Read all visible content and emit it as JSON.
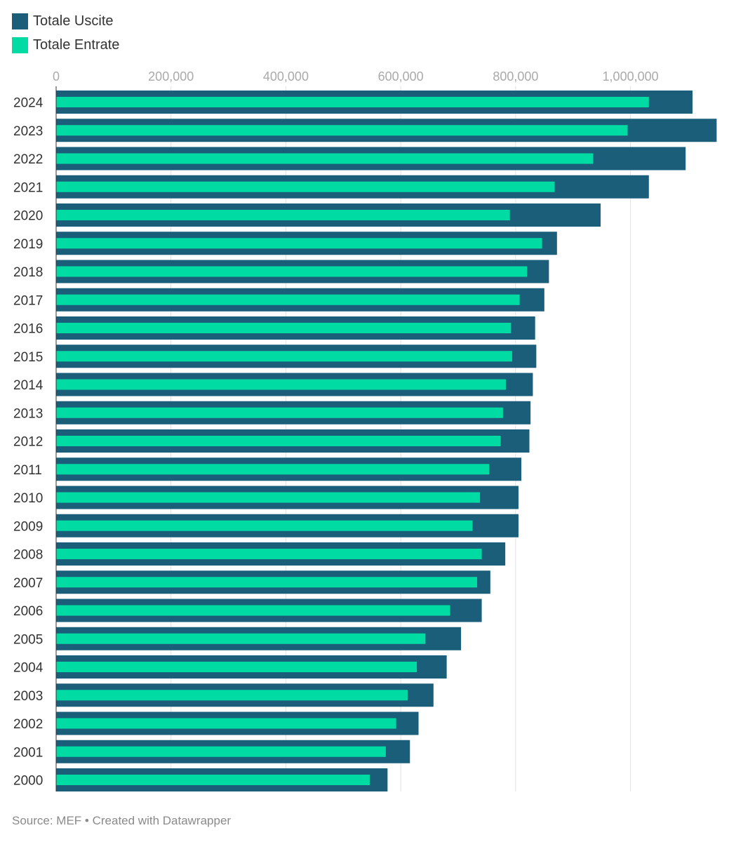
{
  "legend": {
    "uscite_label": "Totale Uscite",
    "entrate_label": "Totale Entrate"
  },
  "colors": {
    "uscite": "#1b5e7a",
    "entrate": "#00dba4"
  },
  "footer": {
    "text": "Source: MEF • Created with Datawrapper"
  },
  "chart_data": {
    "type": "bar",
    "orientation": "horizontal",
    "categories": [
      "2024",
      "2023",
      "2022",
      "2021",
      "2020",
      "2019",
      "2018",
      "2017",
      "2016",
      "2015",
      "2014",
      "2013",
      "2012",
      "2011",
      "2010",
      "2009",
      "2008",
      "2007",
      "2006",
      "2005",
      "2004",
      "2003",
      "2002",
      "2001",
      "2000"
    ],
    "series": [
      {
        "name": "Totale Uscite",
        "values": [
          1108000,
          1150000,
          1096000,
          1032000,
          948000,
          872000,
          858000,
          850000,
          834000,
          836000,
          830000,
          826000,
          824000,
          810000,
          805000,
          805000,
          782000,
          756000,
          741000,
          705000,
          680000,
          657000,
          631000,
          616000,
          577000
        ]
      },
      {
        "name": "Totale Entrate",
        "values": [
          1032000,
          995000,
          935000,
          868000,
          790000,
          846000,
          820000,
          807000,
          792000,
          794000,
          783000,
          778000,
          774000,
          754000,
          738000,
          725000,
          741000,
          733000,
          686000,
          643000,
          628000,
          612000,
          592000,
          574000,
          546000
        ]
      }
    ],
    "xaxis": {
      "ticks": [
        0,
        200000,
        400000,
        600000,
        800000,
        1000000
      ],
      "tick_labels": [
        "0",
        "200,000",
        "400,000",
        "600,000",
        "800,000",
        "1,000,000"
      ],
      "range": [
        0,
        1150000
      ]
    },
    "title": "",
    "xlabel": "",
    "ylabel": "",
    "grid": true,
    "legend_position": "top-left"
  }
}
